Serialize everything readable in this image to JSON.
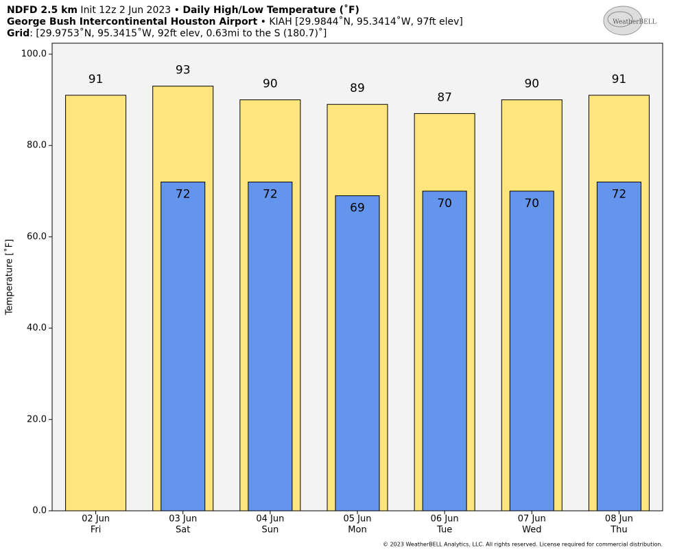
{
  "chart_data": {
    "type": "bar",
    "title_lines": [
      [
        {
          "text": "NDFD 2.5 km",
          "bold": true
        },
        {
          "text": " Init 12z 2 Jun 2023 • ",
          "bold": false
        },
        {
          "text": "Daily High/Low Temperature (˚F)",
          "bold": true
        }
      ],
      [
        {
          "text": "George Bush Intercontinental Houston Airport",
          "bold": true
        },
        {
          "text": " • KIAH [29.9844˚N, 95.3414˚W, 97ft elev]",
          "bold": false
        }
      ],
      [
        {
          "text": "Grid",
          "bold": true
        },
        {
          "text": ": [29.9753˚N, 95.3415˚W, 92ft elev, 0.63mi to the S (180.7)˚]",
          "bold": false
        }
      ]
    ],
    "logo": "WeatherBELL",
    "footer": "© 2023 WeatherBELL Analytics, LLC. All rights reserved. License required for commercial distribution.",
    "ylabel": "Temperature [˚F]",
    "categories": [
      "02 Jun",
      "03 Jun",
      "04 Jun",
      "05 Jun",
      "06 Jun",
      "07 Jun",
      "08 Jun"
    ],
    "weekdays": [
      "Fri",
      "Sat",
      "Sun",
      "Mon",
      "Tue",
      "Wed",
      "Thu"
    ],
    "series": [
      {
        "name": "High",
        "color": "#fee57e",
        "values": [
          91,
          93,
          90,
          89,
          87,
          90,
          91
        ]
      },
      {
        "name": "Low",
        "color": "#6495ed",
        "values": [
          null,
          72,
          72,
          69,
          70,
          70,
          72
        ]
      }
    ],
    "ylim": [
      0,
      102.4
    ],
    "yticks": [
      {
        "value": 0,
        "label": "0.0"
      },
      {
        "value": 20,
        "label": "20.0"
      },
      {
        "value": 40,
        "label": "40.0"
      },
      {
        "value": 60,
        "label": "60.0"
      },
      {
        "value": 80,
        "label": "80.0"
      },
      {
        "value": 100,
        "label": "100.0"
      }
    ],
    "background": "#f4f3f4"
  }
}
